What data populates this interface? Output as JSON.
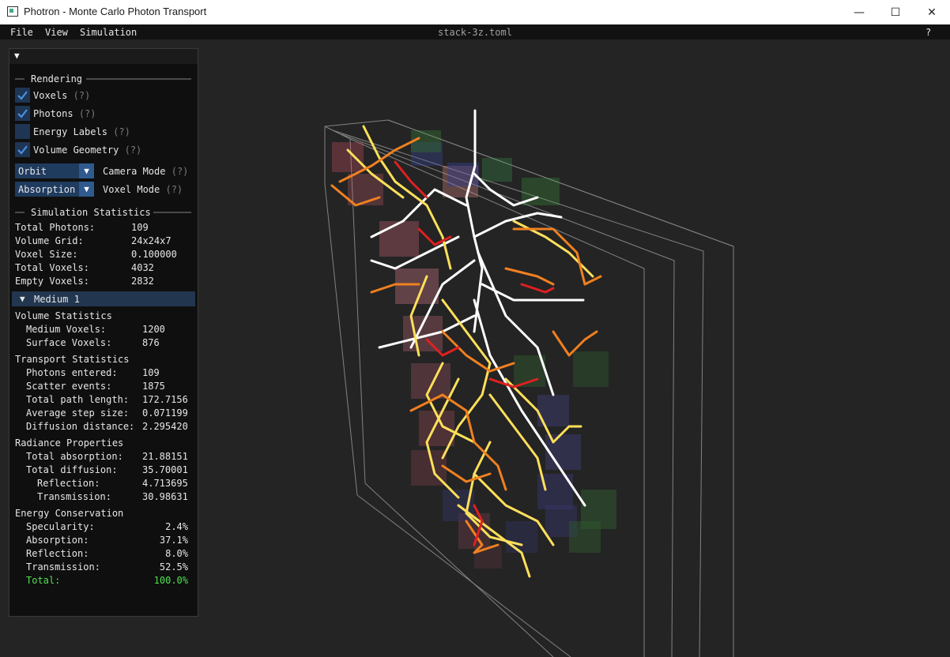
{
  "window": {
    "title": "Photron - Monte Carlo Photon Transport",
    "minimize_glyph": "—",
    "maximize_glyph": "☐",
    "close_glyph": "✕"
  },
  "menubar": {
    "file": "File",
    "view": "View",
    "simulation": "Simulation",
    "filename": "stack-3z.toml",
    "help": "?"
  },
  "panel": {
    "rendering": {
      "header": "Rendering",
      "voxels": {
        "label": "Voxels",
        "checked": true
      },
      "photons": {
        "label": "Photons",
        "checked": true
      },
      "energy_labels": {
        "label": "Energy Labels",
        "checked": false
      },
      "volume_geometry": {
        "label": "Volume Geometry",
        "checked": true
      },
      "help": "(?)",
      "camera_mode": {
        "value": "Orbit",
        "label": "Camera Mode"
      },
      "voxel_mode": {
        "value": "Absorption",
        "label": "Voxel Mode"
      }
    },
    "simulation_stats": {
      "header": "Simulation Statistics",
      "rows": [
        {
          "key": "Total Photons:",
          "value": "109"
        },
        {
          "key": "Volume Grid:",
          "value": "24x24x7"
        },
        {
          "key": "Voxel Size:",
          "value": "0.100000"
        },
        {
          "key": "Total Voxels:",
          "value": "4032"
        },
        {
          "key": "Empty Voxels:",
          "value": "2832"
        }
      ]
    },
    "medium": {
      "header": "Medium 1",
      "volume_title": "Volume Statistics",
      "volume_rows": [
        {
          "key": "Medium Voxels:",
          "value": "1200"
        },
        {
          "key": "Surface Voxels:",
          "value": "876"
        }
      ],
      "transport_title": "Transport Statistics",
      "transport_rows": [
        {
          "key": "Photons entered:",
          "value": "109"
        },
        {
          "key": "Scatter events:",
          "value": "1875"
        },
        {
          "key": "Total path length:",
          "value": "172.7156"
        },
        {
          "key": "Average step size:",
          "value": "0.071199"
        },
        {
          "key": "Diffusion distance:",
          "value": "2.295420"
        }
      ],
      "radiance_title": "Radiance Properties",
      "radiance_rows": [
        {
          "key": "Total absorption:",
          "value": "21.88151"
        },
        {
          "key": "Total diffusion:",
          "value": "35.70001"
        },
        {
          "key": "Reflection:",
          "value": "4.713695"
        },
        {
          "key": "Transmission:",
          "value": "30.98631"
        }
      ],
      "energy_title": "Energy Conservation",
      "energy_rows": [
        {
          "key": "Specularity:",
          "value": "2.4%"
        },
        {
          "key": "Absorption:",
          "value": "37.1%"
        },
        {
          "key": "Reflection:",
          "value": "8.0%"
        },
        {
          "key": "Transmission:",
          "value": "52.5%"
        }
      ],
      "total": {
        "key": "Total:",
        "value": "100.0%"
      }
    }
  },
  "colors": {
    "accent": "#2e5a8e",
    "checkbox": "#1e3553",
    "check": "#4a90e2",
    "total_green": "#50e050"
  }
}
